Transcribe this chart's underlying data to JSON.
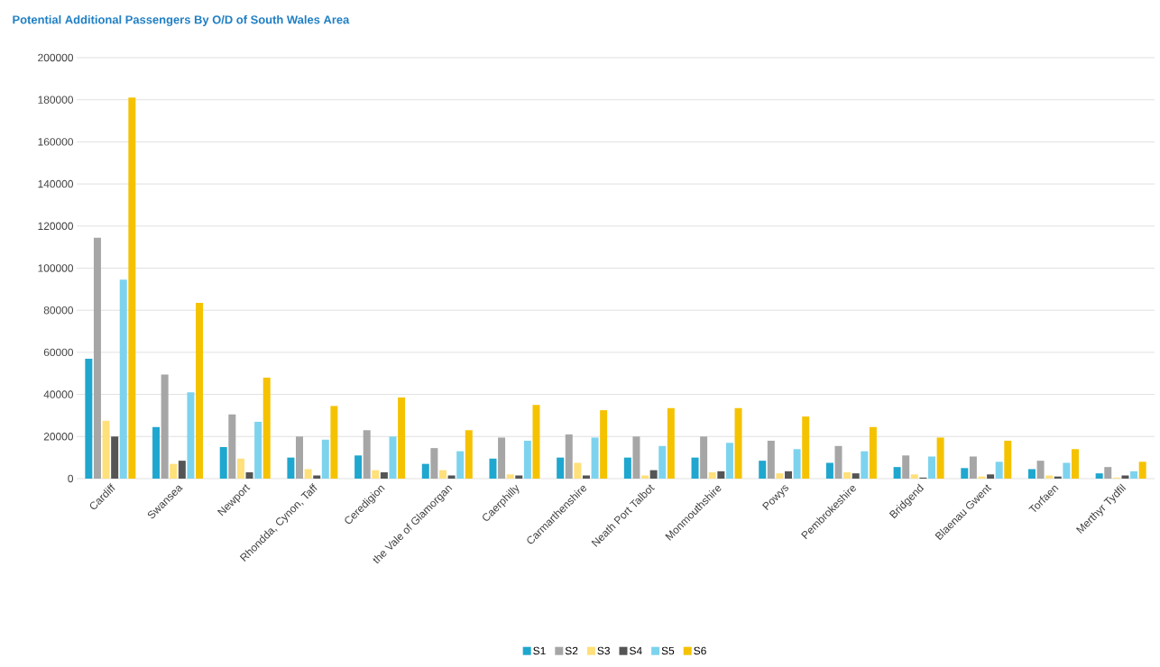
{
  "chart_data": {
    "type": "bar",
    "title": "Potential Additional Passengers By O/D of South Wales Area",
    "categories": [
      "Cardiff",
      "Swansea",
      "Newport",
      "Rhondda, Cynon, Taff",
      "Ceredigion",
      "the Vale of Glamorgan",
      "Caerphilly",
      "Carmarthenshire",
      "Neath Port Talbot",
      "Monmouthshire",
      "Powys",
      "Pembrokeshire",
      "Bridgend",
      "Blaenau Gwent",
      "Torfaen",
      "Merthyr Tydfil"
    ],
    "series": [
      {
        "name": "S1",
        "color": "#1fa7cf",
        "values": [
          57000,
          24500,
          15000,
          10000,
          11000,
          7000,
          9500,
          10000,
          10000,
          10000,
          8500,
          7500,
          5500,
          5000,
          4500,
          2500
        ]
      },
      {
        "name": "S2",
        "color": "#a6a6a6",
        "values": [
          114500,
          49500,
          30500,
          20000,
          23000,
          14500,
          19500,
          21000,
          20000,
          20000,
          18000,
          15500,
          11000,
          10500,
          8500,
          5500
        ]
      },
      {
        "name": "S3",
        "color": "#ffe07a",
        "values": [
          27500,
          7000,
          9500,
          4500,
          4000,
          4000,
          2000,
          7500,
          1500,
          3000,
          2500,
          3000,
          2000,
          1000,
          1500,
          500
        ]
      },
      {
        "name": "S4",
        "color": "#555555",
        "values": [
          20000,
          8500,
          3000,
          1500,
          3000,
          1500,
          1500,
          1500,
          4000,
          3500,
          3500,
          2500,
          500,
          2000,
          1000,
          1500
        ]
      },
      {
        "name": "S5",
        "color": "#7dd3ee",
        "values": [
          94500,
          41000,
          27000,
          18500,
          20000,
          13000,
          18000,
          19500,
          15500,
          17000,
          14000,
          13000,
          10500,
          8000,
          7500,
          3500
        ]
      },
      {
        "name": "S6",
        "color": "#f5c200",
        "values": [
          181000,
          83500,
          48000,
          34500,
          38500,
          23000,
          35000,
          32500,
          33500,
          33500,
          29500,
          24500,
          19500,
          18000,
          14000,
          8000
        ]
      }
    ],
    "ylim": [
      0,
      200000
    ],
    "yticks": [
      0,
      20000,
      40000,
      60000,
      80000,
      100000,
      120000,
      140000,
      160000,
      180000,
      200000
    ],
    "grid": "y",
    "legend": "bottom"
  }
}
